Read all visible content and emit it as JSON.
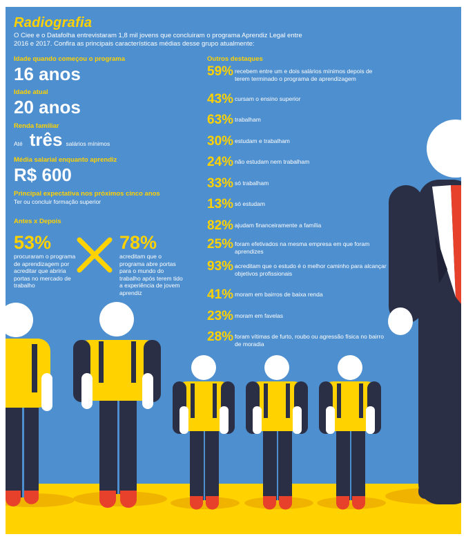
{
  "title": "Radiografia",
  "intro": "O Ciee e o Datafolha entrevistaram 1,8 mil jovens que concluiram o programa Aprendiz Legal entre 2016 e 2017. Confira as principais características médias desse grupo atualmente:",
  "left": {
    "age_start_label": "Idade quando começou o programa",
    "age_start_value": "16 anos",
    "age_now_label": "Idade atual",
    "age_now_value": "20 anos",
    "income_label": "Renda familiar",
    "income_prefix": "Até",
    "income_value": "três",
    "income_suffix": "salários mínimos",
    "salary_label": "Média salarial enquanto aprendiz",
    "salary_value": "R$ 600",
    "expect_label": "Principal expectativa nos próximos cinco anos",
    "expect_value": "Ter ou concluir formação superior",
    "before_after_label": "Antes x Depois",
    "before_pct": "53%",
    "before_text": "procuraram o programa de aprendizagem por acreditar que abriria portas no mercado de trabalho",
    "after_pct": "78%",
    "after_text": "acreditam que o programa abre portas para o mundo do trabalho após terem tido a experiência de jovem aprendiz"
  },
  "right": {
    "heading": "Outros destaques",
    "items": [
      {
        "pct": "59%",
        "text": "recebem entre um e dois salários mínimos depois de terem terminado o programa de aprendizagem"
      },
      {
        "pct": "43%",
        "text": "cursam o ensino superior"
      },
      {
        "pct": "63%",
        "text": "trabalham"
      },
      {
        "pct": "30%",
        "text": "estudam e trabalham"
      },
      {
        "pct": "24%",
        "text": "não estudam nem trabalham"
      },
      {
        "pct": "33%",
        "text": "só trabalham"
      },
      {
        "pct": "13%",
        "text": "só estudam"
      },
      {
        "pct": "82%",
        "text": "ajudam financeiramente a família"
      },
      {
        "pct": "25%",
        "text": "foram efetivados na mesma empresa em que foram aprendizes"
      },
      {
        "pct": "93%",
        "text": "acreditam que o estudo é o melhor caminho para alcançar objetivos profissionais"
      },
      {
        "pct": "41%",
        "text": "moram em bairros de baixa renda"
      },
      {
        "pct": "23%",
        "text": "moram em favelas"
      },
      {
        "pct": "28%",
        "text": "foram vítimas de furto, roubo ou agressão física no bairro de moradia"
      }
    ]
  },
  "colors": {
    "background": "#4e8fcf",
    "accent": "#ffd200",
    "figure_dark": "#2b2f45",
    "shoe": "#e8412b",
    "tie": "#e8412b"
  }
}
